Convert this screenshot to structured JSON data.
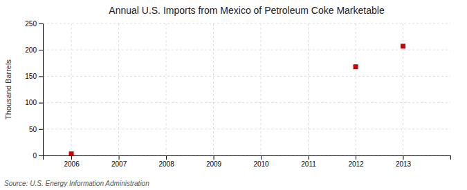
{
  "chart_data": {
    "type": "scatter",
    "title": "Annual U.S. Imports from Mexico of Petroleum Coke Marketable",
    "y_label": "Thousand Barrels",
    "source": "Source: U.S. Energy Information Administration",
    "x": [
      2006,
      2012,
      2013
    ],
    "values": [
      3,
      168,
      207
    ],
    "color": "#cc0000",
    "marker": "square",
    "xlim": [
      2005.4,
      2014.0
    ],
    "ylim": [
      0,
      250
    ],
    "xticks": [
      2006,
      2007,
      2008,
      2009,
      2010,
      2011,
      2012,
      2013
    ],
    "yticks": [
      0,
      50,
      100,
      150,
      200,
      250
    ],
    "grid": true
  }
}
